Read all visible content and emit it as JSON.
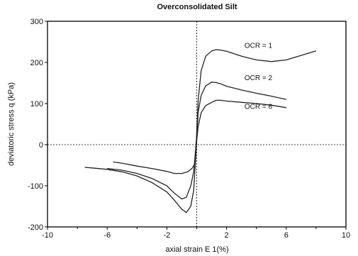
{
  "chart_data": {
    "type": "line",
    "title": "Overconsolidated Silt",
    "xlabel": "axial strain E 1(%)",
    "ylabel": "deviatoric stress q (kPa)",
    "xlim": [
      -10,
      10
    ],
    "ylim": [
      -200,
      300
    ],
    "x_ticks": [
      "-10",
      "-6",
      "-2",
      "2",
      "6",
      "10"
    ],
    "x_tick_values": [
      -10,
      -6,
      -2,
      2,
      6,
      10
    ],
    "y_ticks": [
      "-200",
      "-100",
      "0",
      "100",
      "200",
      "300"
    ],
    "y_tick_values": [
      -200,
      -100,
      0,
      100,
      200,
      300
    ],
    "annotations": [
      {
        "text": "OCR = 1",
        "x": 3.2,
        "y": 235
      },
      {
        "text": "OCR = 2",
        "x": 3.2,
        "y": 157
      },
      {
        "text": "OCR = 6",
        "x": 3.2,
        "y": 87
      }
    ],
    "series": [
      {
        "id": "ocr1",
        "x": [
          -5.6,
          -5.0,
          -4.0,
          -3.0,
          -2.0,
          -1.5,
          -1.0,
          -0.6,
          -0.3,
          -0.1,
          0.0,
          0.1,
          0.3,
          0.6,
          1.0,
          1.3,
          1.6,
          2.0,
          3.0,
          4.0,
          5.0,
          6.0,
          7.0,
          8.0
        ],
        "y": [
          -42,
          -45,
          -52,
          -58,
          -65,
          -70,
          -70,
          -66,
          -57,
          -45,
          30,
          110,
          180,
          215,
          228,
          231,
          230,
          227,
          215,
          206,
          202,
          206,
          217,
          228
        ]
      },
      {
        "id": "ocr2",
        "x": [
          -6.0,
          -5.0,
          -4.0,
          -3.0,
          -2.0,
          -1.5,
          -1.0,
          -0.7,
          -0.4,
          -0.2,
          0.0,
          0.1,
          0.3,
          0.6,
          1.0,
          1.3,
          1.6,
          2.0,
          3.0,
          4.0,
          5.0,
          6.0
        ],
        "y": [
          -58,
          -62,
          -70,
          -82,
          -100,
          -118,
          -132,
          -128,
          -100,
          -65,
          20,
          80,
          120,
          143,
          152,
          151,
          148,
          142,
          133,
          125,
          118,
          110
        ]
      },
      {
        "id": "ocr6",
        "x": [
          -7.5,
          -6.0,
          -5.0,
          -4.0,
          -3.0,
          -2.0,
          -1.5,
          -1.0,
          -0.7,
          -0.4,
          -0.2,
          0.0,
          0.1,
          0.3,
          0.6,
          1.0,
          1.3,
          1.6,
          2.0,
          3.0,
          4.0,
          5.0,
          6.0
        ],
        "y": [
          -55,
          -60,
          -66,
          -76,
          -92,
          -115,
          -135,
          -157,
          -165,
          -150,
          -110,
          10,
          45,
          78,
          95,
          103,
          108,
          108,
          106,
          103,
          100,
          96,
          90
        ]
      }
    ]
  }
}
